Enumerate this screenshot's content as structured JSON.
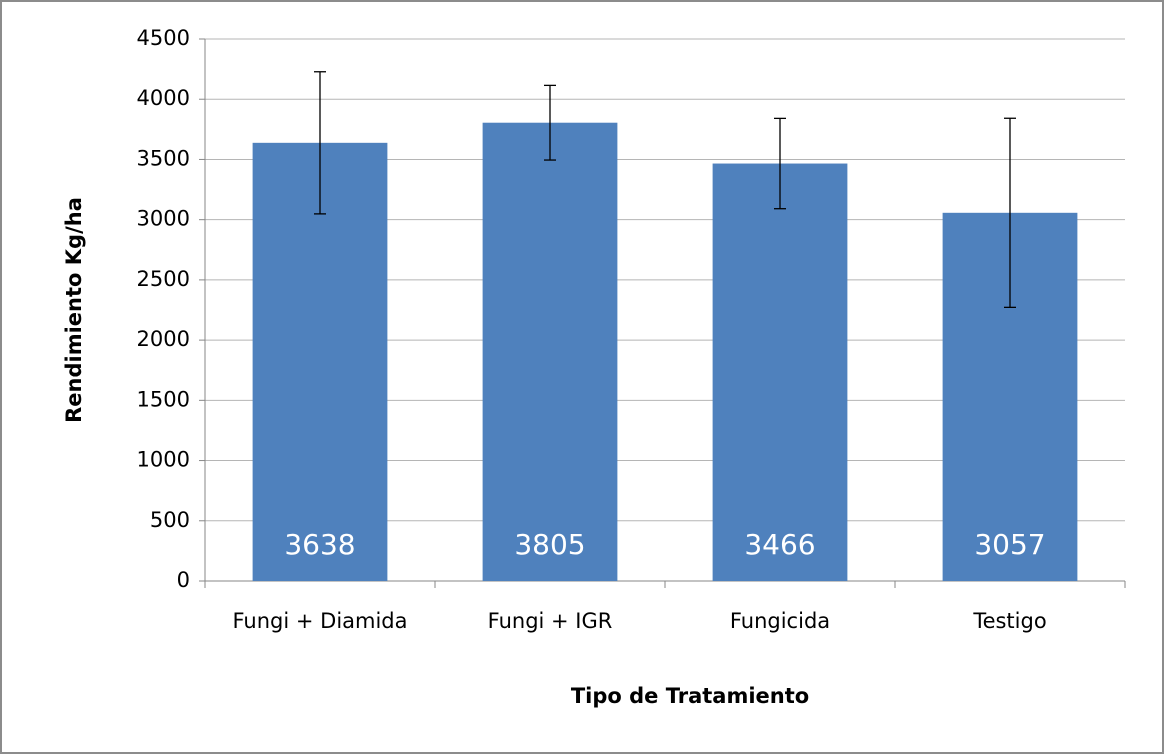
{
  "chart_data": {
    "type": "bar",
    "x_label": "Tipo de Tratamiento",
    "y_label": "Rendimiento Kg/ha",
    "categories": [
      "Fungi + Diamida",
      "Fungi + IGR",
      "Fungicida",
      "Testigo"
    ],
    "values": [
      3638,
      3805,
      3466,
      3057
    ],
    "errors": [
      590,
      310,
      375,
      785
    ],
    "color": "#4f81bd",
    "ylim": [
      0,
      4500
    ],
    "yticks": [
      0,
      500,
      1000,
      1500,
      2000,
      2500,
      3000,
      3500,
      4000,
      4500
    ],
    "grid": true
  }
}
